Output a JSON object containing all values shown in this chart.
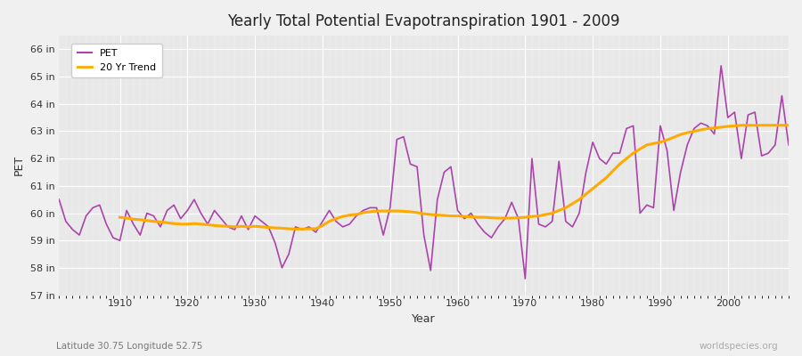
{
  "title": "Yearly Total Potential Evapotranspiration 1901 - 2009",
  "xlabel": "Year",
  "ylabel": "PET",
  "footnote_left": "Latitude 30.75 Longitude 52.75",
  "footnote_right": "worldspecies.org",
  "background_color": "#f0f0f0",
  "plot_bg_color": "#e8e8e8",
  "pet_color": "#aa44aa",
  "trend_color": "#ffaa00",
  "ylim": [
    57,
    66.5
  ],
  "yticks": [
    57,
    58,
    59,
    60,
    61,
    62,
    63,
    64,
    65,
    66
  ],
  "xlim": [
    1901,
    2009
  ],
  "xticks": [
    1910,
    1920,
    1930,
    1940,
    1950,
    1960,
    1970,
    1980,
    1990,
    2000
  ],
  "years": [
    1901,
    1902,
    1903,
    1904,
    1905,
    1906,
    1907,
    1908,
    1909,
    1910,
    1911,
    1912,
    1913,
    1914,
    1915,
    1916,
    1917,
    1918,
    1919,
    1920,
    1921,
    1922,
    1923,
    1924,
    1925,
    1926,
    1927,
    1928,
    1929,
    1930,
    1931,
    1932,
    1933,
    1934,
    1935,
    1936,
    1937,
    1938,
    1939,
    1940,
    1941,
    1942,
    1943,
    1944,
    1945,
    1946,
    1947,
    1948,
    1949,
    1950,
    1951,
    1952,
    1953,
    1954,
    1955,
    1956,
    1957,
    1958,
    1959,
    1960,
    1961,
    1962,
    1963,
    1964,
    1965,
    1966,
    1967,
    1968,
    1969,
    1970,
    1971,
    1972,
    1973,
    1974,
    1975,
    1976,
    1977,
    1978,
    1979,
    1980,
    1981,
    1982,
    1983,
    1984,
    1985,
    1986,
    1987,
    1988,
    1989,
    1990,
    1991,
    1992,
    1993,
    1994,
    1995,
    1996,
    1997,
    1998,
    1999,
    2000,
    2001,
    2002,
    2003,
    2004,
    2005,
    2006,
    2007,
    2008,
    2009
  ],
  "pet_values": [
    60.5,
    59.7,
    59.4,
    59.2,
    59.9,
    60.2,
    60.3,
    59.6,
    59.1,
    59.0,
    60.1,
    59.6,
    59.2,
    60.0,
    59.9,
    59.5,
    60.1,
    60.3,
    59.8,
    60.1,
    60.5,
    60.0,
    59.6,
    60.1,
    59.8,
    59.5,
    59.4,
    59.9,
    59.4,
    59.9,
    59.7,
    59.5,
    58.9,
    58.0,
    58.5,
    59.5,
    59.4,
    59.5,
    59.3,
    59.7,
    60.1,
    59.7,
    59.5,
    59.6,
    59.9,
    60.1,
    60.2,
    60.2,
    59.2,
    60.2,
    62.7,
    62.8,
    61.8,
    61.7,
    59.2,
    57.9,
    60.5,
    61.5,
    61.7,
    60.1,
    59.8,
    60.0,
    59.6,
    59.3,
    59.1,
    59.5,
    59.8,
    60.4,
    59.8,
    57.6,
    62.0,
    59.6,
    59.5,
    59.7,
    61.9,
    59.7,
    59.5,
    60.0,
    61.5,
    62.6,
    62.0,
    61.8,
    62.2,
    62.2,
    63.1,
    63.2,
    60.0,
    60.3,
    60.2,
    63.2,
    62.3,
    60.1,
    61.5,
    62.5,
    63.1,
    63.3,
    63.2,
    62.9,
    65.4,
    63.5,
    63.7,
    62.0,
    63.6,
    63.7,
    62.1,
    62.2,
    62.5,
    64.3,
    62.5
  ],
  "trend_values": [
    null,
    null,
    null,
    null,
    null,
    null,
    null,
    null,
    null,
    59.85,
    59.82,
    59.78,
    59.76,
    59.73,
    59.7,
    59.68,
    59.65,
    59.62,
    59.6,
    59.6,
    59.62,
    59.6,
    59.58,
    59.55,
    59.53,
    59.52,
    59.5,
    59.52,
    59.5,
    59.52,
    59.5,
    59.48,
    59.46,
    59.45,
    59.43,
    59.42,
    59.42,
    59.43,
    59.43,
    59.55,
    59.7,
    59.8,
    59.88,
    59.93,
    59.95,
    60.02,
    60.05,
    60.08,
    60.08,
    60.08,
    60.08,
    60.07,
    60.05,
    60.02,
    59.98,
    59.95,
    59.93,
    59.92,
    59.9,
    59.9,
    59.88,
    59.87,
    59.85,
    59.85,
    59.83,
    59.82,
    59.82,
    59.82,
    59.83,
    59.85,
    59.88,
    59.9,
    59.95,
    60.0,
    60.1,
    60.2,
    60.35,
    60.5,
    60.7,
    60.9,
    61.1,
    61.3,
    61.55,
    61.8,
    62.0,
    62.2,
    62.35,
    62.5,
    62.55,
    62.6,
    62.68,
    62.78,
    62.88,
    62.95,
    63.0,
    63.05,
    63.1,
    63.12,
    63.15,
    63.18,
    63.2,
    63.22,
    63.22,
    63.22,
    63.22,
    63.22,
    63.22,
    63.22,
    63.22
  ]
}
